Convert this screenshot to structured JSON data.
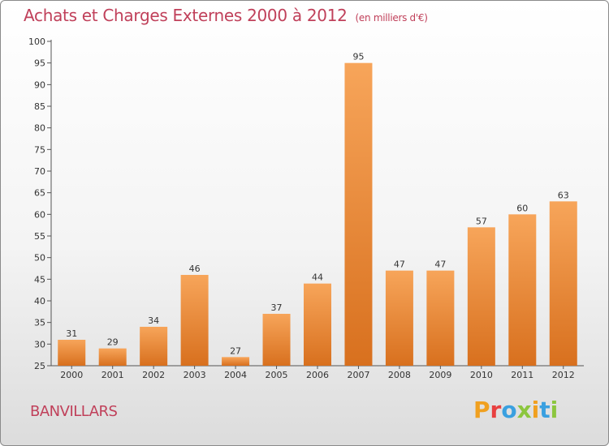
{
  "header": {
    "title": "Achats et Charges Externes 2000 à 2012",
    "unit": "(en milliers d'€)"
  },
  "footer": {
    "location": "BANVILLARS",
    "brand": "Proxiti",
    "brand_colors": [
      "#f0a020",
      "#e84040",
      "#3aa0e0",
      "#8cc63e",
      "#f0a020",
      "#3aa0e0",
      "#8cc63e"
    ]
  },
  "colors": {
    "title": "#c0405a",
    "bar_light": "#f7a55a",
    "bar_dark": "#d8701e",
    "axis": "#555555"
  },
  "chart_data": {
    "type": "bar",
    "title": "Achats et Charges Externes 2000 à 2012",
    "subtitle": "(en milliers d'€)",
    "categories": [
      "2000",
      "2001",
      "2002",
      "2003",
      "2004",
      "2005",
      "2006",
      "2007",
      "2008",
      "2009",
      "2010",
      "2011",
      "2012"
    ],
    "values": [
      31,
      29,
      34,
      46,
      27,
      37,
      44,
      95,
      47,
      47,
      57,
      60,
      63
    ],
    "ylim": [
      25,
      100
    ],
    "yticks": [
      25,
      30,
      35,
      40,
      45,
      50,
      55,
      60,
      65,
      70,
      75,
      80,
      85,
      90,
      95,
      100
    ],
    "xlabel": "",
    "ylabel": "",
    "grid": false,
    "data_labels": true
  }
}
